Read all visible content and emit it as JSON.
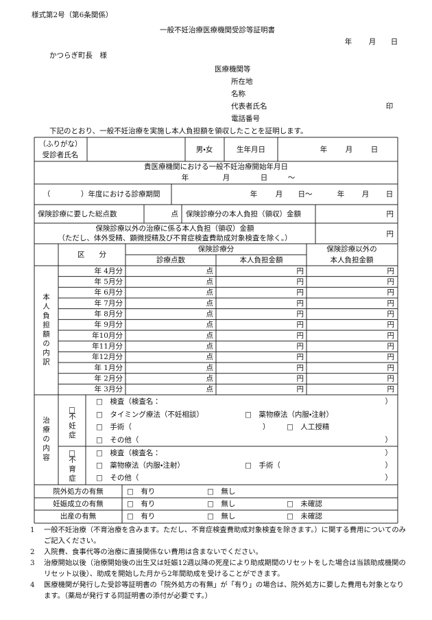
{
  "header": {
    "form_no": "様式第2号（第6条関係）",
    "title": "一般不妊治療医療機関受診等証明書",
    "date": [
      "年",
      "月",
      "日"
    ],
    "addressee": "かつらぎ町長　様"
  },
  "clinic": {
    "label": "医療機関等",
    "fields": [
      "所在地",
      "名称",
      "代表者氏名",
      "電話番号"
    ],
    "seal": "印"
  },
  "statement": "下記のとおり、一般不妊治療を実施し本人負担額を領収したことを証明します。",
  "patient": {
    "furigana": "（ふりがな）",
    "name": "受診者氏名",
    "sex": "男・女",
    "birth": "生年月日",
    "date": [
      "年",
      "月",
      "日"
    ]
  },
  "start": {
    "label": "貴医療機関における一般不妊治療開始年月日",
    "date": [
      "年",
      "月",
      "日"
    ],
    "tilde": "～"
  },
  "period": {
    "open": "（",
    "label": "）年度における診療期間",
    "from": [
      "年",
      "月",
      "日～"
    ],
    "to": [
      "年",
      "月",
      "日"
    ]
  },
  "insured": {
    "points": "保険診療に要した総点数",
    "point": "点",
    "burden": "保険診療分の本人負担（領収）金額",
    "yen": "円"
  },
  "uninsured": {
    "lines": [
      "保険診療以外の治療に係る本人負担（領収）金額",
      "（ただし、体外受精、顕微授精及び不育症検査費助成対象検査を除く。）"
    ],
    "yen": "円"
  },
  "breakdown": {
    "side": "本人負担額の内訳",
    "kubun": "区　　分",
    "insured": "保険診療分",
    "points": "診療点数",
    "burden": "本人負担金額",
    "other": [
      "保険診療以外の",
      "本人負担金額"
    ],
    "months": [
      "年 4月分",
      "年 5月分",
      "年 6月分",
      "年 7月分",
      "年 8月分",
      "年 9月分",
      "年10月分",
      "年11月分",
      "年12月分",
      "年 1月分",
      "年 2月分",
      "年 3月分"
    ],
    "point": "点",
    "yen": "円"
  },
  "treatment": {
    "side": "治療の内容",
    "infertility": {
      "label": [
        "□",
        "不妊症"
      ],
      "rows": [
        [
          "□　検査（検査名：",
          "）"
        ],
        [
          "□　タイミング療法（不妊相談）",
          "□　薬物療法（内服・注射）"
        ],
        [
          "□　手術（",
          "）",
          "□　人工授精"
        ],
        [
          "□　その他（",
          "）"
        ]
      ]
    },
    "recurrent": {
      "label": [
        "□",
        "不育症"
      ],
      "rows": [
        [
          "□　検査（検査名：",
          "）"
        ],
        [
          "□　薬物療法（内服・注射）",
          "□　手術（",
          "）"
        ],
        [
          "□　その他（",
          "）"
        ]
      ]
    }
  },
  "outcomes": [
    {
      "label": "院外処方の有無",
      "options": [
        "□　有り",
        "□　無し"
      ]
    },
    {
      "label": "妊娠成立の有無",
      "options": [
        "□　有り",
        "□　無し",
        "□　未確認"
      ]
    },
    {
      "label": "出産の有無",
      "options": [
        "□　有り",
        "□　無し",
        "□　未確認"
      ]
    }
  ],
  "notes": [
    {
      "no": "1",
      "text": "一般不妊治療（不育治療を含みます。ただし、不育症検査費助成対象検査を除きます。）に関する費用についてのみご記入ください。"
    },
    {
      "no": "2",
      "text": "入院費、食事代等の治療に直接関係ない費用は含まないでください。"
    },
    {
      "no": "3",
      "text": "治療開始以後（治療開始後の出生又は妊娠12週以降の死産により助成期間のリセットをした場合は当該助成機関のリセット以後）、助成を開始した月から2年間助成を受けることができます。"
    },
    {
      "no": "4",
      "text": "医療機関が発行した受診等証明書の「院外処方の有無」が「有り」の場合は、院外処方に要した費用も対象となります。（薬局が発行する同証明書の添付が必要です。）"
    }
  ]
}
